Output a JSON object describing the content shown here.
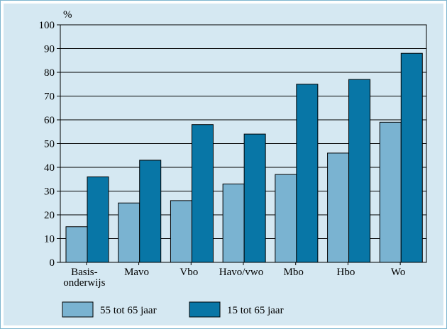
{
  "chart_data": {
    "type": "bar",
    "ylabel": "%",
    "ylim": [
      0,
      100
    ],
    "yticks": [
      0,
      10,
      20,
      30,
      40,
      50,
      60,
      70,
      80,
      90,
      100
    ],
    "categories": [
      "Basis-\nonderwijs",
      "Mavo",
      "Vbo",
      "Havo/vwo",
      "Mbo",
      "Hbo",
      "Wo"
    ],
    "series": [
      {
        "name": "55 tot 65 jaar",
        "color": "#7ab3d1",
        "values": [
          15,
          25,
          26,
          33,
          37,
          46,
          59
        ]
      },
      {
        "name": "15 tot 65 jaar",
        "color": "#0876a6",
        "values": [
          36,
          43,
          58,
          54,
          75,
          77,
          88
        ]
      }
    ],
    "grid": true,
    "legend_position": "bottom"
  }
}
